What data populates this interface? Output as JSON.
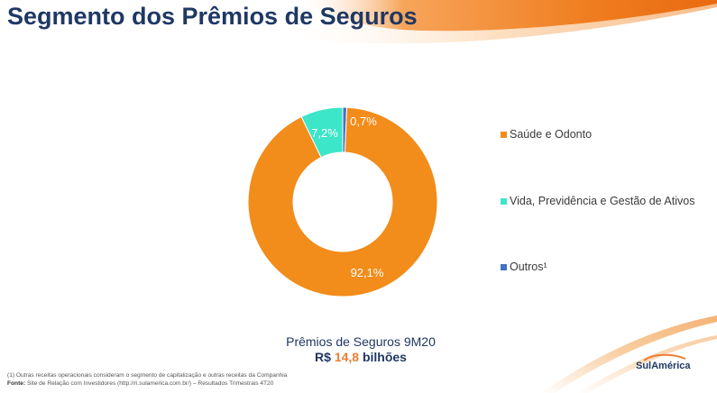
{
  "title": "Segmento dos Prêmios de Seguros",
  "chart_data": {
    "type": "pie",
    "variant": "donut",
    "title": "",
    "slices": [
      {
        "name": "Saúde e Odonto",
        "value": 92.1,
        "label": "92,1%",
        "color": "#f28c1a"
      },
      {
        "name": "Vida, Previdência e Gestão de Ativos",
        "value": 7.2,
        "label": "7,2%",
        "color": "#3ce6c8"
      },
      {
        "name": "Outros¹",
        "value": 0.7,
        "label": "0,7%",
        "color": "#4472c4"
      }
    ],
    "legend_position": "right"
  },
  "caption": {
    "line1": "Prêmios de Seguros 9M20",
    "currency": "R$",
    "value": "14,8",
    "unit": "bilhões"
  },
  "footnote": {
    "note1": "(1)    Outras receitas operacionais consideram o segmento de capitalização e outras receitas da Companhia",
    "source_label": "Fonte:",
    "source_text": " Site de Relação com Investidores (http://ri.sulamerica.com.br/) – Resultados Trimestrais 4T20"
  },
  "logo": {
    "text": "SulAmérica"
  },
  "colors": {
    "title": "#1f3864",
    "accent": "#ed7d31"
  }
}
